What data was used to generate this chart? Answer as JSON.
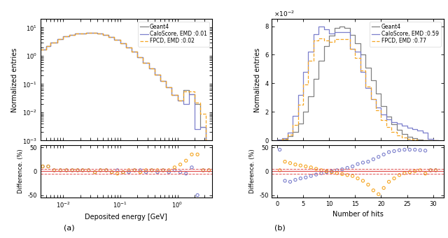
{
  "caloscores_color": "#7b7fcc",
  "fpcd_color": "#f5a623",
  "geant4_color": "#808080",
  "ref_line_color": "#e05252",
  "panel_a": {
    "xlabel": "Deposited energy [GeV]",
    "ylabel": "Normalized entries",
    "legend": [
      "CaloScore, EMD :0.01",
      "FPCD, EMD :0.02",
      "Geant4"
    ],
    "xmin": 0.004,
    "xmax": 4.0,
    "ymin": 0.001,
    "ymax": 20.0,
    "bin_edges": [
      0.004,
      0.005,
      0.006,
      0.008,
      0.01,
      0.013,
      0.016,
      0.02,
      0.025,
      0.032,
      0.04,
      0.05,
      0.063,
      0.079,
      0.1,
      0.126,
      0.158,
      0.2,
      0.251,
      0.316,
      0.398,
      0.501,
      0.631,
      0.794,
      1.0,
      1.26,
      1.585,
      2.0,
      2.51,
      3.16,
      4.0
    ],
    "geant4_vals": [
      1.65,
      2.2,
      3.0,
      3.8,
      4.8,
      5.6,
      6.0,
      6.3,
      6.5,
      6.5,
      6.2,
      5.5,
      4.6,
      3.7,
      2.8,
      2.0,
      1.4,
      0.9,
      0.58,
      0.36,
      0.22,
      0.13,
      0.075,
      0.042,
      0.026,
      0.06,
      0.044,
      0.02,
      0.003,
      0.001
    ],
    "caloscores_vals": [
      1.65,
      2.2,
      3.0,
      3.8,
      4.8,
      5.6,
      6.0,
      6.3,
      6.5,
      6.5,
      6.2,
      5.5,
      4.6,
      3.7,
      2.8,
      2.0,
      1.4,
      0.9,
      0.58,
      0.36,
      0.22,
      0.13,
      0.075,
      0.042,
      0.026,
      0.02,
      0.044,
      0.0025,
      0.003,
      0.0004
    ],
    "fpcd_vals": [
      1.65,
      2.2,
      3.0,
      3.8,
      4.8,
      5.6,
      6.0,
      6.3,
      6.5,
      6.5,
      6.2,
      5.5,
      4.6,
      3.7,
      2.8,
      2.0,
      1.4,
      0.9,
      0.58,
      0.36,
      0.22,
      0.13,
      0.075,
      0.042,
      0.026,
      0.055,
      0.055,
      0.022,
      0.009,
      0.0009
    ],
    "diff_caloscores": [
      10,
      10,
      2,
      2,
      2,
      2,
      2,
      2,
      2,
      -2,
      2,
      2,
      -2,
      2,
      -2,
      -2,
      2,
      2,
      -2,
      2,
      -2,
      2,
      -2,
      2,
      -2,
      -5,
      8,
      -50,
      2,
      2
    ],
    "diff_fpcd": [
      10,
      10,
      2,
      2,
      2,
      2,
      2,
      2,
      2,
      -2,
      2,
      2,
      -2,
      -5,
      -2,
      2,
      2,
      -2,
      2,
      2,
      2,
      2,
      2,
      8,
      14,
      22,
      35,
      35,
      2,
      2
    ],
    "diff_xvals": [
      0.0044,
      0.0055,
      0.007,
      0.009,
      0.0115,
      0.0145,
      0.018,
      0.022,
      0.028,
      0.036,
      0.045,
      0.057,
      0.071,
      0.089,
      0.112,
      0.141,
      0.178,
      0.224,
      0.282,
      0.355,
      0.447,
      0.562,
      0.708,
      0.891,
      1.12,
      1.41,
      1.78,
      2.24,
      2.82,
      3.55
    ]
  },
  "panel_b": {
    "xlabel": "Number of hits",
    "ylabel": "Normalized entries",
    "legend": [
      "CaloScore, EMD :0.59",
      "FPCD, EMD :0.77",
      "Geant4"
    ],
    "xmin": -1,
    "xmax": 32,
    "ymin": 0.0,
    "ymax": 0.085,
    "bin_edges": [
      0,
      1,
      2,
      3,
      4,
      5,
      6,
      7,
      8,
      9,
      10,
      11,
      12,
      13,
      14,
      15,
      16,
      17,
      18,
      19,
      20,
      21,
      22,
      23,
      24,
      25,
      26,
      27,
      28,
      29,
      30,
      31
    ],
    "geant4_vals": [
      0.0,
      0.0008,
      0.003,
      0.006,
      0.012,
      0.02,
      0.031,
      0.043,
      0.056,
      0.066,
      0.0735,
      0.079,
      0.08,
      0.079,
      0.074,
      0.068,
      0.06,
      0.051,
      0.042,
      0.033,
      0.024,
      0.017,
      0.0115,
      0.0075,
      0.0048,
      0.0028,
      0.0016,
      0.0008,
      0.0003,
      0.0001,
      5e-05
    ],
    "caloscores_vals": [
      0.0007,
      0.0018,
      0.0055,
      0.0175,
      0.032,
      0.048,
      0.062,
      0.0745,
      0.08,
      0.078,
      0.075,
      0.076,
      0.076,
      0.076,
      0.064,
      0.062,
      0.048,
      0.037,
      0.029,
      0.023,
      0.018,
      0.015,
      0.013,
      0.012,
      0.0105,
      0.0092,
      0.008,
      0.0068,
      0.0055,
      0.001,
      0.0002
    ],
    "fpcd_vals": [
      0.0,
      0.0013,
      0.004,
      0.011,
      0.025,
      0.039,
      0.056,
      0.07,
      0.0715,
      0.07,
      0.069,
      0.071,
      0.071,
      0.071,
      0.064,
      0.058,
      0.049,
      0.038,
      0.029,
      0.021,
      0.0145,
      0.0095,
      0.006,
      0.0035,
      0.002,
      0.001,
      0.0005,
      0.0002,
      0.0001,
      3e-05,
      1e-05
    ],
    "diff_caloscores": [
      45,
      -20,
      -22,
      -18,
      -15,
      -13,
      -10,
      -7,
      -4,
      -2,
      0,
      2,
      4,
      7,
      10,
      15,
      18,
      20,
      25,
      30,
      35,
      40,
      42,
      44,
      45,
      45,
      45,
      44,
      43,
      2,
      2
    ],
    "diff_fpcd": [
      2,
      20,
      17,
      14,
      12,
      10,
      8,
      5,
      2,
      0,
      -2,
      -4,
      -6,
      -8,
      -10,
      -15,
      -20,
      -28,
      -40,
      -48,
      -35,
      -22,
      -15,
      -8,
      -4,
      -2,
      0,
      2,
      -5,
      2,
      2
    ],
    "diff_xvals": [
      0.5,
      1.5,
      2.5,
      3.5,
      4.5,
      5.5,
      6.5,
      7.5,
      8.5,
      9.5,
      10.5,
      11.5,
      12.5,
      13.5,
      14.5,
      15.5,
      16.5,
      17.5,
      18.5,
      19.5,
      20.5,
      21.5,
      22.5,
      23.5,
      24.5,
      25.5,
      26.5,
      27.5,
      28.5,
      29.5,
      30.5
    ]
  }
}
